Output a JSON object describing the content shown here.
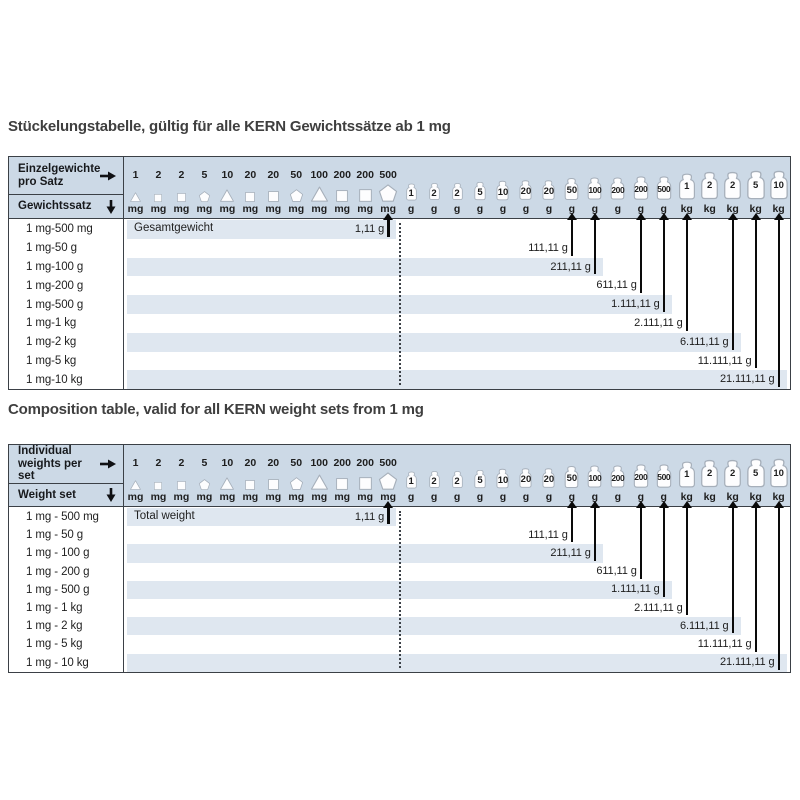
{
  "colors": {
    "header_bg": "#ccd9e6",
    "band_bg": "#dfe7f0",
    "border": "#3b4046",
    "arrow": "#0a0a0a",
    "icon_outline": "#a6afba",
    "title_text": "#3f3f3f",
    "body_text": "#1d1d1d"
  },
  "columns": [
    {
      "value": "1",
      "unit": "mg",
      "shape": "triangle",
      "size": 10
    },
    {
      "value": "2",
      "unit": "mg",
      "shape": "square",
      "size": 8
    },
    {
      "value": "2",
      "unit": "mg",
      "shape": "square",
      "size": 9
    },
    {
      "value": "5",
      "unit": "mg",
      "shape": "pentagon",
      "size": 11
    },
    {
      "value": "10",
      "unit": "mg",
      "shape": "triangle",
      "size": 13
    },
    {
      "value": "20",
      "unit": "mg",
      "shape": "square",
      "size": 10
    },
    {
      "value": "20",
      "unit": "mg",
      "shape": "square",
      "size": 11
    },
    {
      "value": "50",
      "unit": "mg",
      "shape": "pentagon",
      "size": 13
    },
    {
      "value": "100",
      "unit": "mg",
      "shape": "triangle",
      "size": 16
    },
    {
      "value": "200",
      "unit": "mg",
      "shape": "square",
      "size": 12
    },
    {
      "value": "200",
      "unit": "mg",
      "shape": "square",
      "size": 13
    },
    {
      "value": "500",
      "unit": "mg",
      "shape": "pentagon",
      "size": 18
    },
    {
      "value": "1",
      "unit": "g",
      "shape": "weight",
      "size": 20
    },
    {
      "value": "2",
      "unit": "g",
      "shape": "weight",
      "size": 21
    },
    {
      "value": "2",
      "unit": "g",
      "shape": "weight",
      "size": 21
    },
    {
      "value": "5",
      "unit": "g",
      "shape": "weight",
      "size": 22
    },
    {
      "value": "10",
      "unit": "g",
      "shape": "weight",
      "size": 23
    },
    {
      "value": "20",
      "unit": "g",
      "shape": "weight",
      "size": 24
    },
    {
      "value": "20",
      "unit": "g",
      "shape": "weight",
      "size": 24
    },
    {
      "value": "50",
      "unit": "g",
      "shape": "weight",
      "size": 26
    },
    {
      "value": "100",
      "unit": "g",
      "shape": "weight",
      "size": 27
    },
    {
      "value": "200",
      "unit": "g",
      "shape": "weight",
      "size": 27
    },
    {
      "value": "200",
      "unit": "g",
      "shape": "weight",
      "size": 28
    },
    {
      "value": "500",
      "unit": "g",
      "shape": "weight",
      "size": 28
    },
    {
      "value": "1",
      "unit": "kg",
      "shape": "weight",
      "size": 31
    },
    {
      "value": "2",
      "unit": "kg",
      "shape": "weight",
      "size": 33
    },
    {
      "value": "2",
      "unit": "kg",
      "shape": "weight",
      "size": 33
    },
    {
      "value": "5",
      "unit": "kg",
      "shape": "weight",
      "size": 34
    },
    {
      "value": "10",
      "unit": "kg",
      "shape": "weight",
      "size": 34
    }
  ],
  "separator_after_column": 11,
  "tables": [
    {
      "lang": "de",
      "title": "Stückelungstabelle, gültig für alle KERN Gewichtssätze ab 1 mg",
      "header": {
        "row1": "Einzelgewichte pro Satz",
        "row2": "Gewichtssatz"
      },
      "total_label": "Gesamtgewicht",
      "rows": [
        {
          "label": "1 mg-500 mg",
          "total": "1,11 g",
          "arrow_col": 11
        },
        {
          "label": "1 mg-50 g",
          "total": "111,11 g",
          "arrow_col": 19
        },
        {
          "label": "1 mg-100 g",
          "total": "211,11 g",
          "arrow_col": 20
        },
        {
          "label": "1 mg-200 g",
          "total": "611,11 g",
          "arrow_col": 22
        },
        {
          "label": "1 mg-500 g",
          "total": "1.111,11 g",
          "arrow_col": 23
        },
        {
          "label": "1 mg-1 kg",
          "total": "2.111,11 g",
          "arrow_col": 24
        },
        {
          "label": "1 mg-2 kg",
          "total": "6.111,11 g",
          "arrow_col": 26
        },
        {
          "label": "1 mg-5 kg",
          "total": "11.111,11 g",
          "arrow_col": 27
        },
        {
          "label": "1 mg-10 kg",
          "total": "21.111,11 g",
          "arrow_col": 28
        }
      ]
    },
    {
      "lang": "en",
      "title": "Composition table, valid for all KERN weight sets from 1 mg",
      "header": {
        "row1": "Individual weights per set",
        "row2": "Weight set"
      },
      "total_label": "Total weight",
      "rows": [
        {
          "label": "1 mg - 500 mg",
          "total": "1,11 g",
          "arrow_col": 11
        },
        {
          "label": "1 mg - 50 g",
          "total": "111,11 g",
          "arrow_col": 19
        },
        {
          "label": "1 mg - 100 g",
          "total": "211,11 g",
          "arrow_col": 20
        },
        {
          "label": "1 mg - 200 g",
          "total": "611,11 g",
          "arrow_col": 22
        },
        {
          "label": "1 mg - 500 g",
          "total": "1.111,11 g",
          "arrow_col": 23
        },
        {
          "label": "1 mg - 1 kg",
          "total": "2.111,11 g",
          "arrow_col": 24
        },
        {
          "label": "1 mg - 2 kg",
          "total": "6.111,11 g",
          "arrow_col": 26
        },
        {
          "label": "1 mg - 5 kg",
          "total": "11.111,11 g",
          "arrow_col": 27
        },
        {
          "label": "1 mg - 10 kg",
          "total": "21.111,11 g",
          "arrow_col": 28
        }
      ]
    }
  ]
}
